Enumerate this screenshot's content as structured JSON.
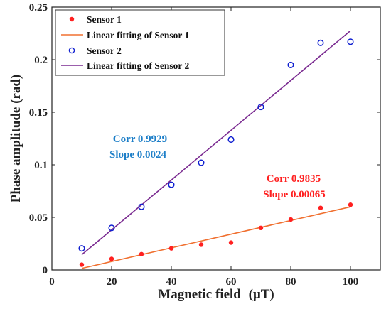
{
  "chart_data": {
    "type": "scatter",
    "xlabel": "Magnetic field",
    "xlabel_unit": "(μT)",
    "ylabel": "Phase amplitude (rad)",
    "xlim": [
      0,
      110
    ],
    "ylim": [
      0,
      0.25
    ],
    "xticks": [
      "0",
      "20",
      "40",
      "60",
      "80",
      "100"
    ],
    "yticks": [
      "0",
      "0.05",
      "0.1",
      "0.15",
      "0.2",
      "0.25"
    ],
    "grid": false,
    "legend_position": "top-left",
    "series": [
      {
        "name": "Sensor 1",
        "kind": "points",
        "marker": "filled-circle",
        "color": "#ff2020",
        "x": [
          10,
          20,
          30,
          40,
          50,
          60,
          70,
          80,
          90,
          100
        ],
        "y": [
          0.005,
          0.0105,
          0.015,
          0.0205,
          0.024,
          0.026,
          0.04,
          0.048,
          0.059,
          0.062
        ]
      },
      {
        "name": "Linear fitting of Sensor 1",
        "kind": "line",
        "color": "#f07030",
        "x": [
          10,
          100
        ],
        "y": [
          0.0015,
          0.06
        ]
      },
      {
        "name": "Sensor 2",
        "kind": "points",
        "marker": "open-circle",
        "color": "#1020d0",
        "x": [
          10,
          20,
          30,
          40,
          50,
          60,
          70,
          80,
          90,
          100
        ],
        "y": [
          0.0205,
          0.04,
          0.06,
          0.081,
          0.102,
          0.124,
          0.155,
          0.195,
          0.216,
          0.217
        ]
      },
      {
        "name": "Linear fitting of Sensor 2",
        "kind": "line",
        "color": "#7a2a90",
        "x": [
          10,
          100
        ],
        "y": [
          0.0145,
          0.2275
        ]
      }
    ],
    "annotations": [
      {
        "id": "sensor2-corr",
        "text": "Corr 0.9929",
        "color": "#1e7fc8"
      },
      {
        "id": "sensor2-slope",
        "text": "Slope 0.0024",
        "color": "#1e7fc8"
      },
      {
        "id": "sensor1-corr",
        "text": "Corr 0.9835",
        "color": "#ff2020"
      },
      {
        "id": "sensor1-slope",
        "text": "Slope 0.00065",
        "color": "#ff2020"
      }
    ]
  }
}
